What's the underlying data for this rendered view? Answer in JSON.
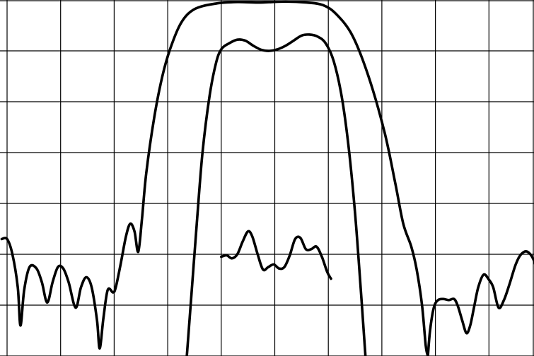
{
  "chart_data": {
    "type": "line",
    "title": "",
    "xlabel": "",
    "ylabel": "",
    "xlim": [
      0,
      10
    ],
    "ylim": [
      0,
      7
    ],
    "grid": true,
    "legend": "none",
    "x_divisions": 10,
    "y_divisions": 7,
    "line_color": "#000000",
    "grid_color": "#000000",
    "background": "#ffffff",
    "series": [
      {
        "id": "outer",
        "points": [
          [
            -0.1,
            2.3
          ],
          [
            0.0,
            2.3
          ],
          [
            0.1,
            2.0
          ],
          [
            0.2,
            1.35
          ],
          [
            0.25,
            0.6
          ],
          [
            0.32,
            1.3
          ],
          [
            0.42,
            1.75
          ],
          [
            0.55,
            1.72
          ],
          [
            0.65,
            1.45
          ],
          [
            0.75,
            1.05
          ],
          [
            0.85,
            1.45
          ],
          [
            0.95,
            1.75
          ],
          [
            1.05,
            1.72
          ],
          [
            1.15,
            1.45
          ],
          [
            1.28,
            0.95
          ],
          [
            1.38,
            1.35
          ],
          [
            1.48,
            1.55
          ],
          [
            1.58,
            1.35
          ],
          [
            1.68,
            0.7
          ],
          [
            1.73,
            0.15
          ],
          [
            1.8,
            0.75
          ],
          [
            1.88,
            1.3
          ],
          [
            1.98,
            1.25
          ],
          [
            2.03,
            1.35
          ],
          [
            2.12,
            1.8
          ],
          [
            2.22,
            2.35
          ],
          [
            2.3,
            2.6
          ],
          [
            2.38,
            2.45
          ],
          [
            2.45,
            2.05
          ],
          [
            2.52,
            2.7
          ],
          [
            2.6,
            3.6
          ],
          [
            2.75,
            4.7
          ],
          [
            2.9,
            5.5
          ],
          [
            3.05,
            6.05
          ],
          [
            3.25,
            6.55
          ],
          [
            3.5,
            6.82
          ],
          [
            3.9,
            6.93
          ],
          [
            4.3,
            6.96
          ],
          [
            4.7,
            6.95
          ],
          [
            5.2,
            6.97
          ],
          [
            5.6,
            6.95
          ],
          [
            5.9,
            6.9
          ],
          [
            6.15,
            6.72
          ],
          [
            6.45,
            6.3
          ],
          [
            6.75,
            5.5
          ],
          [
            7.05,
            4.4
          ],
          [
            7.25,
            3.4
          ],
          [
            7.4,
            2.6
          ],
          [
            7.55,
            2.15
          ],
          [
            7.65,
            1.7
          ],
          [
            7.75,
            1.0
          ],
          [
            7.82,
            0.2
          ],
          [
            7.86,
            0.0
          ]
        ]
      },
      {
        "id": "outer_right_tail",
        "points": [
          [
            7.86,
            0.0
          ],
          [
            7.9,
            0.5
          ],
          [
            7.97,
            0.95
          ],
          [
            8.05,
            1.1
          ],
          [
            8.15,
            1.12
          ],
          [
            8.25,
            1.1
          ],
          [
            8.35,
            1.12
          ],
          [
            8.42,
            0.98
          ],
          [
            8.5,
            0.7
          ],
          [
            8.58,
            0.45
          ],
          [
            8.65,
            0.6
          ],
          [
            8.72,
            0.95
          ],
          [
            8.8,
            1.35
          ],
          [
            8.9,
            1.6
          ],
          [
            9.0,
            1.5
          ],
          [
            9.08,
            1.35
          ],
          [
            9.18,
            0.95
          ],
          [
            9.28,
            1.1
          ],
          [
            9.38,
            1.4
          ],
          [
            9.5,
            1.8
          ],
          [
            9.6,
            2.0
          ],
          [
            9.72,
            2.05
          ],
          [
            9.85,
            1.85
          ],
          [
            9.95,
            1.4
          ],
          [
            10.05,
            1.2
          ]
        ]
      },
      {
        "id": "inner",
        "points": [
          [
            3.35,
            -0.1
          ],
          [
            3.45,
            1.3
          ],
          [
            3.55,
            2.7
          ],
          [
            3.65,
            4.0
          ],
          [
            3.78,
            5.1
          ],
          [
            3.9,
            5.75
          ],
          [
            4.0,
            6.03
          ],
          [
            4.15,
            6.15
          ],
          [
            4.3,
            6.22
          ],
          [
            4.45,
            6.2
          ],
          [
            4.6,
            6.1
          ],
          [
            4.75,
            6.02
          ],
          [
            4.9,
            6.0
          ],
          [
            5.05,
            6.03
          ],
          [
            5.2,
            6.1
          ],
          [
            5.35,
            6.2
          ],
          [
            5.5,
            6.3
          ],
          [
            5.65,
            6.32
          ],
          [
            5.8,
            6.28
          ],
          [
            5.95,
            6.15
          ],
          [
            6.1,
            5.8
          ],
          [
            6.25,
            5.1
          ],
          [
            6.38,
            4.1
          ],
          [
            6.5,
            2.8
          ],
          [
            6.6,
            1.4
          ],
          [
            6.68,
            0.2
          ],
          [
            6.7,
            -0.1
          ]
        ]
      },
      {
        "id": "middle_ripple",
        "points": [
          [
            4.0,
            1.95
          ],
          [
            4.1,
            1.98
          ],
          [
            4.2,
            1.92
          ],
          [
            4.3,
            2.0
          ],
          [
            4.4,
            2.25
          ],
          [
            4.5,
            2.45
          ],
          [
            4.58,
            2.35
          ],
          [
            4.68,
            2.0
          ],
          [
            4.78,
            1.7
          ],
          [
            4.88,
            1.75
          ],
          [
            4.98,
            1.8
          ],
          [
            5.08,
            1.72
          ],
          [
            5.18,
            1.75
          ],
          [
            5.28,
            1.98
          ],
          [
            5.38,
            2.3
          ],
          [
            5.48,
            2.32
          ],
          [
            5.58,
            2.1
          ],
          [
            5.68,
            2.1
          ],
          [
            5.78,
            2.15
          ],
          [
            5.88,
            1.95
          ],
          [
            5.98,
            1.65
          ],
          [
            6.05,
            1.52
          ]
        ]
      }
    ]
  }
}
